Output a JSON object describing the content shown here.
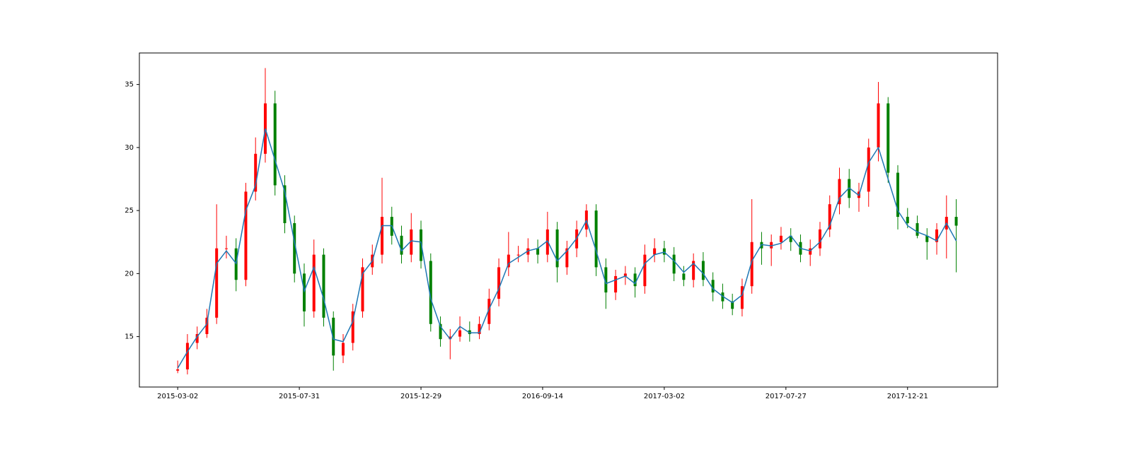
{
  "chart_data": {
    "type": "candlestick",
    "x": [
      0,
      8,
      16,
      24,
      32,
      40,
      48,
      56,
      64,
      72,
      80,
      88,
      96,
      104,
      112,
      120,
      128,
      136,
      144,
      152,
      160,
      168,
      176,
      184,
      192,
      200,
      208,
      216,
      224,
      232,
      240,
      248,
      256,
      264,
      272,
      280,
      288,
      296,
      304,
      312,
      320,
      328,
      336,
      344,
      352,
      360,
      368,
      376,
      384,
      392,
      400,
      408,
      416,
      424,
      432,
      440,
      448,
      456,
      464,
      472,
      480,
      488,
      496,
      504,
      512,
      520,
      528,
      536,
      544,
      552,
      560,
      568,
      576,
      584,
      592,
      600,
      608,
      616,
      624,
      632,
      640
    ],
    "open": [
      12.3,
      12.4,
      14.5,
      15.2,
      16.5,
      22,
      22,
      19.5,
      26.5,
      29.5,
      33.5,
      27,
      24,
      20,
      17,
      21.5,
      16.5,
      13.5,
      14.5,
      17,
      20.5,
      21.5,
      24.5,
      23,
      21.5,
      23.5,
      21,
      16,
      14.8,
      15,
      15.5,
      15.2,
      16,
      18,
      20.5,
      21.5,
      21.5,
      22,
      21.5,
      23.5,
      20.5,
      22,
      23.5,
      25,
      20.5,
      18.5,
      19.8,
      20,
      19,
      21.5,
      22,
      21.5,
      20,
      19.5,
      21,
      19.5,
      18.5,
      17.8,
      17.2,
      19,
      22.5,
      22,
      22.5,
      23,
      22.5,
      21.5,
      22,
      23.5,
      25.5,
      27.5,
      26,
      26.5,
      30,
      33.5,
      28,
      24.5,
      24,
      23,
      22.5,
      23.5,
      24.5
    ],
    "high": [
      13.1,
      15.2,
      15.8,
      17.2,
      25.5,
      23.0,
      22.8,
      27.2,
      30.8,
      36.3,
      34.5,
      27.8,
      24.6,
      20.8,
      22.7,
      22.0,
      17.0,
      15.2,
      17.6,
      21.2,
      22.3,
      27.6,
      25.3,
      23.8,
      24.8,
      24.2,
      21.6,
      16.6,
      15.6,
      16.6,
      16.2,
      16.6,
      18.8,
      21.2,
      23.3,
      22.2,
      22.8,
      22.7,
      24.9,
      24.1,
      22.6,
      24.2,
      25.5,
      25.5,
      21.2,
      20.3,
      20.6,
      20.5,
      22.3,
      22.8,
      22.6,
      22.1,
      20.6,
      21.6,
      21.7,
      20.1,
      19.2,
      18.4,
      19.6,
      25.9,
      23.3,
      23.1,
      23.7,
      23.6,
      23.1,
      22.7,
      24.1,
      26.2,
      28.4,
      28.3,
      27.2,
      30.7,
      35.2,
      34.0,
      28.6,
      25.2,
      24.6,
      23.6,
      24.0,
      26.2,
      25.9
    ],
    "low": [
      12.1,
      12.0,
      14.0,
      14.9,
      16.0,
      21.2,
      18.6,
      19.0,
      25.8,
      28.8,
      26.2,
      23.2,
      19.3,
      15.8,
      16.5,
      15.8,
      12.3,
      12.9,
      13.9,
      16.5,
      19.9,
      20.8,
      22.3,
      20.8,
      20.9,
      20.4,
      15.4,
      14.2,
      13.2,
      14.6,
      14.6,
      14.8,
      15.5,
      17.4,
      19.8,
      20.9,
      20.9,
      20.8,
      20.9,
      19.3,
      19.9,
      21.3,
      22.9,
      19.8,
      17.2,
      17.9,
      19.1,
      18.1,
      18.4,
      20.9,
      20.9,
      19.4,
      19.0,
      18.9,
      19.0,
      17.8,
      17.2,
      16.7,
      16.6,
      18.4,
      20.7,
      20.6,
      21.9,
      21.8,
      20.9,
      20.6,
      21.4,
      22.9,
      24.7,
      25.2,
      24.9,
      25.3,
      28.9,
      27.2,
      23.5,
      23.6,
      22.8,
      21.1,
      21.5,
      21.2,
      20.1
    ],
    "close": [
      12.4,
      14.5,
      15.2,
      16.5,
      22,
      22,
      19.5,
      26.5,
      29.5,
      33.5,
      27,
      24,
      20,
      17,
      21.5,
      16.5,
      13.5,
      14.5,
      17,
      20.5,
      21.5,
      24.5,
      23,
      21.5,
      23.5,
      21,
      16,
      14.8,
      15,
      15.5,
      15.2,
      16,
      18,
      20.5,
      21.5,
      21.5,
      22,
      21.5,
      23.5,
      20.5,
      22,
      23.5,
      25,
      20.5,
      18.5,
      19.8,
      20,
      19,
      21.5,
      22,
      21.5,
      20,
      19.5,
      21,
      19.5,
      18.5,
      17.8,
      17.2,
      19,
      22.5,
      22,
      22.5,
      23,
      22.5,
      21.5,
      22,
      23.5,
      25.5,
      27.5,
      26,
      26.5,
      30,
      33.5,
      28,
      24.5,
      24,
      23,
      22.5,
      23.5,
      24.5,
      23.8
    ],
    "ma": {
      "color": "#1f77b4",
      "values": [
        12.5,
        13.8,
        15.0,
        16.0,
        20.8,
        21.8,
        20.8,
        25.0,
        27.0,
        31.5,
        29.0,
        26.5,
        22.5,
        18.6,
        20.5,
        18.0,
        14.8,
        14.6,
        16.2,
        20.0,
        21.0,
        23.8,
        23.8,
        21.8,
        22.6,
        22.5,
        18.0,
        15.8,
        14.8,
        15.8,
        15.3,
        15.3,
        17.2,
        18.8,
        20.8,
        21.3,
        21.8,
        22.0,
        22.6,
        21.0,
        21.8,
        22.8,
        24.2,
        21.8,
        19.2,
        19.5,
        19.8,
        19.2,
        20.8,
        21.5,
        21.7,
        21.0,
        20.1,
        20.8,
        20.0,
        18.8,
        18.2,
        17.7,
        18.3,
        21.0,
        22.3,
        22.2,
        22.4,
        23.0,
        22.0,
        21.8,
        22.5,
        23.8,
        26.0,
        26.8,
        26.2,
        28.8,
        30.0,
        27.5,
        25.0,
        23.8,
        23.3,
        23.0,
        22.6,
        24.0,
        22.6
      ]
    },
    "up_color": "#ff0000",
    "down_color": "#008000",
    "xlim": [
      -31.5,
      674
    ],
    "xticks": [
      {
        "value": 0,
        "label": "2015-03-02"
      },
      {
        "value": 100,
        "label": "2015-07-31"
      },
      {
        "value": 200,
        "label": "2015-12-29"
      },
      {
        "value": 300,
        "label": "2016-09-14"
      },
      {
        "value": 400,
        "label": "2017-03-02"
      },
      {
        "value": 500,
        "label": "2017-07-27"
      },
      {
        "value": 600,
        "label": "2017-12-21"
      }
    ],
    "ylim": [
      11.0,
      37.5
    ],
    "yticks": [
      15,
      20,
      25,
      30,
      35
    ]
  }
}
